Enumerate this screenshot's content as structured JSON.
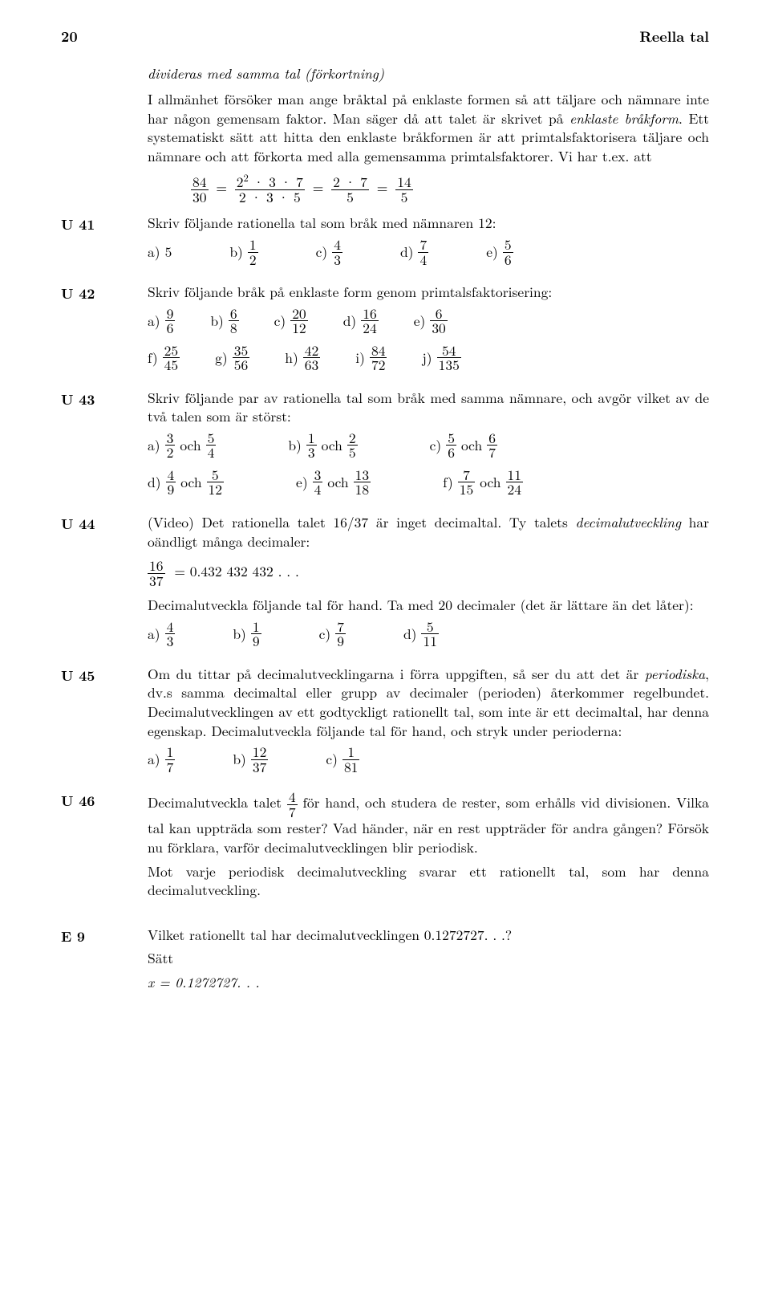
{
  "header": {
    "page": "20",
    "chapter": "Reella tal"
  },
  "intro": {
    "p0": "divideras med samma tal (förkortning)",
    "p1a": "I allmänhet försöker man ange bråktal på enklaste formen så att täljare och nämnare inte har någon gemensam faktor. Man säger då att talet är skrivet på ",
    "p1i": "enklaste bråkform",
    "p1b": ". Ett systematiskt sätt att hitta den enklaste bråkformen är att primtalsfaktorisera täljare och nämnare och att förkorta med alla gemensamma primtalsfaktorer. Vi har t.ex. att"
  },
  "u41": {
    "label": "U 41",
    "text": "Skriv följande rationella tal som bråk med nämnaren 12:",
    "opts": [
      {
        "tag": "a)",
        "whole": "5"
      },
      {
        "tag": "b)",
        "n": "1",
        "d": "2"
      },
      {
        "tag": "c)",
        "n": "4",
        "d": "3"
      },
      {
        "tag": "d)",
        "n": "7",
        "d": "4"
      },
      {
        "tag": "e)",
        "n": "5",
        "d": "6"
      }
    ]
  },
  "u42": {
    "label": "U 42",
    "text": "Skriv följande bråk på enklaste form genom primtalsfaktorisering:",
    "r1": [
      {
        "tag": "a)",
        "n": "9",
        "d": "6"
      },
      {
        "tag": "b)",
        "n": "6",
        "d": "8"
      },
      {
        "tag": "c)",
        "n": "20",
        "d": "12"
      },
      {
        "tag": "d)",
        "n": "16",
        "d": "24"
      },
      {
        "tag": "e)",
        "n": "6",
        "d": "30"
      }
    ],
    "r2": [
      {
        "tag": "f)",
        "n": "25",
        "d": "45"
      },
      {
        "tag": "g)",
        "n": "35",
        "d": "56"
      },
      {
        "tag": "h)",
        "n": "42",
        "d": "63"
      },
      {
        "tag": "i)",
        "n": "84",
        "d": "72"
      },
      {
        "tag": "j)",
        "n": "54",
        "d": "135"
      }
    ]
  },
  "u43": {
    "label": "U 43",
    "text": "Skriv följande par av rationella tal som bråk med samma nämnare, och avgör vilket av de två talen som är störst:",
    "och": "och",
    "r1": [
      {
        "tag": "a)",
        "n1": "3",
        "d1": "2",
        "n2": "5",
        "d2": "4"
      },
      {
        "tag": "b)",
        "n1": "1",
        "d1": "3",
        "n2": "2",
        "d2": "5"
      },
      {
        "tag": "c)",
        "n1": "5",
        "d1": "6",
        "n2": "6",
        "d2": "7"
      }
    ],
    "r2": [
      {
        "tag": "d)",
        "n1": "4",
        "d1": "9",
        "n2": "5",
        "d2": "12"
      },
      {
        "tag": "e)",
        "n1": "3",
        "d1": "4",
        "n2": "13",
        "d2": "18"
      },
      {
        "tag": "f)",
        "n1": "7",
        "d1": "15",
        "n2": "11",
        "d2": "24"
      }
    ]
  },
  "u44": {
    "label": "U 44",
    "p1a": "(Video) Det rationella talet 16/37 är inget decimaltal. Ty talets ",
    "p1i": "decimalutveckling",
    "p1b": " har oändligt många decimaler:",
    "eq": {
      "n": "16",
      "d": "37",
      "rhs": "= 0.432 432 432 . . ."
    },
    "p2": "Decimalutveckla följande tal för hand. Ta med 20 decimaler (det är lättare än det låter):",
    "opts": [
      {
        "tag": "a)",
        "n": "4",
        "d": "3"
      },
      {
        "tag": "b)",
        "n": "1",
        "d": "9"
      },
      {
        "tag": "c)",
        "n": "7",
        "d": "9"
      },
      {
        "tag": "d)",
        "n": "5",
        "d": "11"
      }
    ]
  },
  "u45": {
    "label": "U 45",
    "p1a": "Om du tittar på decimalutvecklingarna i förra uppgiften, så ser du att det är ",
    "p1i": "periodiska",
    "p1b": ", dv.s samma decimaltal eller grupp av decimaler (perioden) återkommer regelbundet. Decimalutvecklingen av ett godtyckligt rationellt tal, som inte är ett decimaltal, har denna egenskap. Decimalutveckla följande tal för hand, och stryk under perioderna:",
    "opts": [
      {
        "tag": "a)",
        "n": "1",
        "d": "7"
      },
      {
        "tag": "b)",
        "n": "12",
        "d": "37"
      },
      {
        "tag": "c)",
        "n": "1",
        "d": "81"
      }
    ]
  },
  "u46": {
    "label": "U 46",
    "lead": "Decimalutveckla talet ",
    "frac": {
      "n": "4",
      "d": "7"
    },
    "tail": " för hand, och studera de rester, som erhålls vid divisionen. Vilka tal kan uppträda som rester? Vad händer, när en rest uppträder för andra gången? Försök nu förklara, varför decimalutvecklingen blir periodisk.",
    "p2": "Mot varje periodisk decimalutveckling svarar ett rationellt tal, som har denna decimalutveckling."
  },
  "e9": {
    "label": "E 9",
    "text": "Vilket rationellt tal har decimalutvecklingen 0.1272727. . .?",
    "set": "Sätt",
    "eq": "x = 0.1272727. . ."
  },
  "disp": {
    "f1": {
      "n": "84",
      "d": "30"
    },
    "f2": {
      "n": "2² · 3 · 7",
      "d": "2 · 3 · 5"
    },
    "f3": {
      "n": "2 · 7",
      "d": "5"
    },
    "f4": {
      "n": "14",
      "d": "5"
    }
  }
}
